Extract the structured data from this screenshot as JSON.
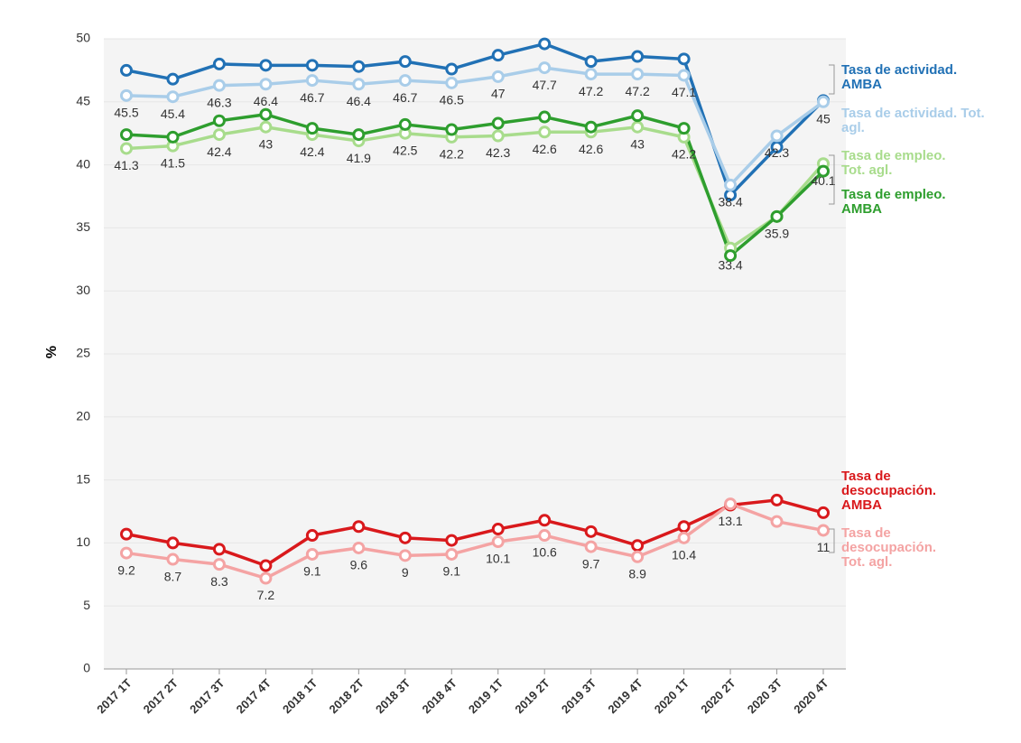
{
  "chart_data": {
    "type": "line",
    "y_label": "%",
    "categories": [
      "2017 1T",
      "2017 2T",
      "2017 3T",
      "2017 4T",
      "2018 1T",
      "2018 2T",
      "2018 3T",
      "2018 4T",
      "2019 1T",
      "2019 2T",
      "2019 3T",
      "2019 4T",
      "2020 1T",
      "2020 2T",
      "2020 3T",
      "2020 4T"
    ],
    "ylim": [
      0,
      50
    ],
    "yticks": [
      0,
      5,
      10,
      15,
      20,
      25,
      30,
      35,
      40,
      45,
      50
    ],
    "grid": true,
    "series": [
      {
        "name": "Tasa de actividad. AMBA",
        "color": "#2171b5",
        "values": [
          47.5,
          46.8,
          48.0,
          47.9,
          47.9,
          47.8,
          48.2,
          47.6,
          48.7,
          49.6,
          48.2,
          48.6,
          48.4,
          37.6,
          41.4,
          45.1
        ]
      },
      {
        "name": "Tasa de actividad. Tot. agl.",
        "color": "#a9cde9",
        "labels": true,
        "values": [
          45.5,
          45.4,
          46.3,
          46.4,
          46.7,
          46.4,
          46.7,
          46.5,
          47,
          47.7,
          47.2,
          47.2,
          47.1,
          38.4,
          42.3,
          45
        ]
      },
      {
        "name": "Tasa de empleo. Tot. agl.",
        "color": "#a8dc8c",
        "labels": true,
        "values": [
          41.3,
          41.5,
          42.4,
          43,
          42.4,
          41.9,
          42.5,
          42.2,
          42.3,
          42.6,
          42.6,
          43,
          42.2,
          33.4,
          35.9,
          40.1
        ]
      },
      {
        "name": "Tasa de empleo. AMBA",
        "color": "#2e9e2e",
        "values": [
          42.4,
          42.2,
          43.5,
          44.0,
          42.9,
          42.4,
          43.2,
          42.8,
          43.3,
          43.8,
          43.0,
          43.9,
          42.9,
          32.8,
          35.9,
          39.5
        ]
      },
      {
        "name": "Tasa de desocupación. AMBA",
        "color": "#d9191c",
        "values": [
          10.7,
          10.0,
          9.5,
          8.2,
          10.6,
          11.3,
          10.4,
          10.2,
          11.1,
          11.8,
          10.9,
          9.8,
          11.3,
          13.0,
          13.4,
          12.4
        ]
      },
      {
        "name": "Tasa de desocupación. Tot. agl.",
        "color": "#f4a3a3",
        "values": [
          9.2,
          8.7,
          8.3,
          7.2,
          9.1,
          9.6,
          9,
          9.1,
          10.1,
          10.6,
          9.7,
          8.9,
          10.4,
          13.1,
          11.7,
          11
        ],
        "value_labels": [
          "9.2",
          "8.7",
          "8.3",
          "7.2",
          "9.1",
          "9.6",
          "9",
          "9.1",
          "10.1",
          "10.6",
          "9.7",
          "8.9",
          "10.4",
          "13.1",
          null,
          "11"
        ]
      }
    ]
  }
}
